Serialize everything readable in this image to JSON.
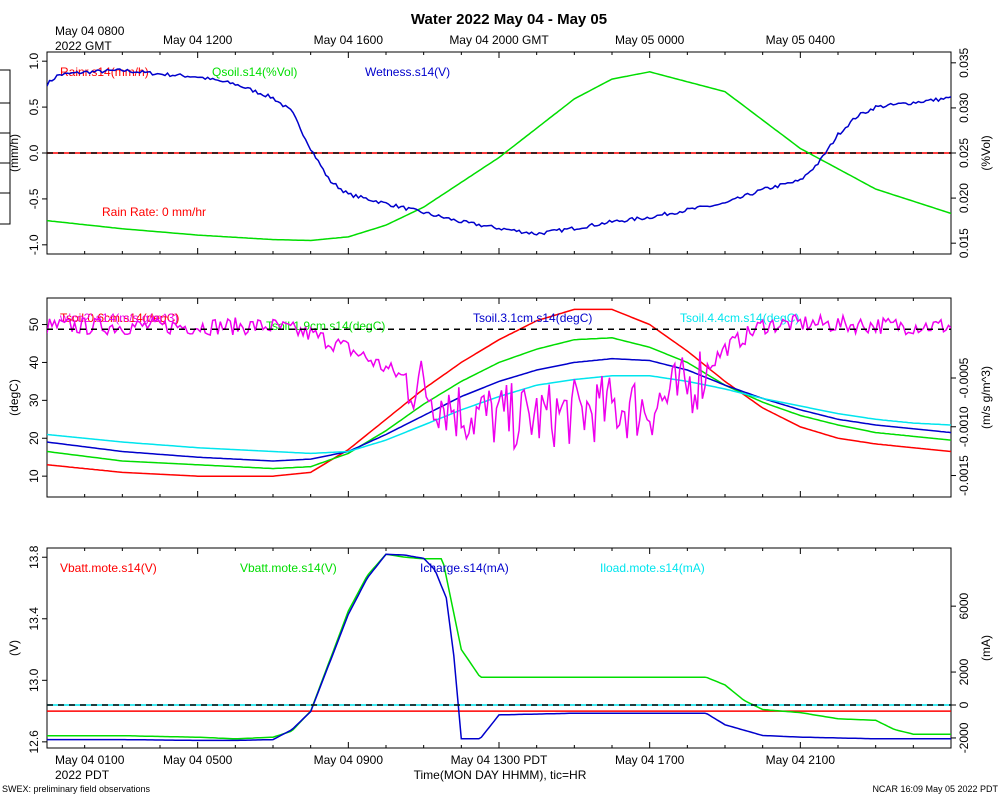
{
  "figure": {
    "title": "Water 2022 May 04 - May 05",
    "top_axis_start": [
      "May 04 0800",
      "2022 GMT"
    ],
    "top_ticks": [
      "May 04 1200",
      "May 04 1600",
      "May 04 2000 GMT",
      "May 05 0000",
      "May 05 0400"
    ],
    "bottom_axis_start": [
      "May 04 0100",
      "2022 PDT"
    ],
    "bottom_ticks": [
      "May 04 0500",
      "May 04 0900",
      "May 04 1300 PDT",
      "May 04 1700",
      "May 04 2100"
    ],
    "xlabel": "Time(MON DAY HHMM), tic=HR",
    "footer_left": "SWEX: preliminary field observations",
    "footer_right": "NCAR 16:09 May 05 2022 PDT",
    "hour_range": [
      0,
      24
    ]
  },
  "colors": {
    "red": "#ff0000",
    "green": "#00dd00",
    "blue": "#0000cc",
    "cyan": "#00e5ee",
    "magenta": "#ee00ee"
  },
  "chart_data": [
    {
      "type": "line",
      "title": "Water panel",
      "ylabel_left": "(mm/h)",
      "ylim_left": [
        -1.1,
        1.1
      ],
      "yticks_left": [
        "1.0",
        "0.5",
        "0.0",
        "-0.5",
        "-1.0"
      ],
      "ylabel_right": "(%Vol)",
      "ylim_right": [
        0.0138,
        0.0362
      ],
      "yticks_right": [
        "0.035",
        "0.030",
        "0.025",
        "0.020",
        "0.015"
      ],
      "annotation": "Rain Rate: 0 mm/hr",
      "series": [
        {
          "name": "Rainr.s14(mm/h)",
          "color": "red",
          "axis": "left",
          "dashed_zero": true,
          "x": [
            0,
            24
          ],
          "values": [
            0,
            0
          ]
        },
        {
          "name": "Qsoil.s14(%Vol)",
          "color": "green",
          "axis": "right",
          "x": [
            0,
            2,
            4,
            6,
            7,
            8,
            9,
            10,
            12,
            14,
            15,
            16,
            18,
            20,
            22,
            24
          ],
          "values": [
            0.0175,
            0.0166,
            0.0159,
            0.0154,
            0.0153,
            0.0157,
            0.017,
            0.019,
            0.0245,
            0.031,
            0.0332,
            0.034,
            0.0318,
            0.0255,
            0.021,
            0.0183
          ]
        },
        {
          "name": "Wetness.s14(V)",
          "color": "blue",
          "axis": "left",
          "noise": 0.02,
          "x": [
            0,
            0.3,
            1,
            2,
            3,
            4,
            5,
            6,
            6.5,
            7,
            7.5,
            8,
            8.5,
            9,
            10,
            11,
            12,
            13,
            14,
            15,
            16,
            17,
            18,
            19,
            20,
            20.5,
            21,
            21.5,
            22,
            23,
            24
          ],
          "values": [
            0.75,
            0.85,
            0.88,
            0.9,
            0.86,
            0.83,
            0.75,
            0.6,
            0.45,
            0.05,
            -0.3,
            -0.45,
            -0.5,
            -0.55,
            -0.65,
            -0.75,
            -0.82,
            -0.88,
            -0.82,
            -0.75,
            -0.7,
            -0.62,
            -0.55,
            -0.4,
            -0.3,
            -0.1,
            0.2,
            0.4,
            0.5,
            0.55,
            0.6
          ]
        }
      ]
    },
    {
      "type": "line",
      "title": "Soil temperature / CO2 flux panel",
      "ylabel_left": "(degC)",
      "ylim_left": [
        4.5,
        57
      ],
      "yticks_left": [
        "50",
        "40",
        "30",
        "20",
        "10"
      ],
      "ylabel_right": "(m/s g/m^3)",
      "ylim_right": [
        -0.00172,
        0.00032
      ],
      "yticks_right": [
        "-0.0005",
        "-0.0010",
        "-0.0015"
      ],
      "series": [
        {
          "name": "Tsoil.0.6cm.s14(degC)",
          "color": "red",
          "axis": "left",
          "x": [
            0,
            2,
            4,
            6,
            7,
            8,
            9,
            10,
            11,
            12,
            13,
            14,
            15,
            16,
            17,
            18,
            19,
            20,
            21,
            22,
            23,
            24
          ],
          "values": [
            13,
            11,
            10,
            10,
            11,
            17,
            25,
            33,
            40,
            46,
            51,
            54,
            54,
            50,
            43,
            35,
            28,
            23,
            20,
            18.5,
            17.5,
            16.5
          ]
        },
        {
          "name": "Tsoil.1.9cm.s14(degC)",
          "color": "green",
          "axis": "left",
          "x": [
            0,
            2,
            4,
            6,
            7,
            8,
            9,
            10,
            11,
            12,
            13,
            14,
            15,
            16,
            17,
            18,
            19,
            20,
            21,
            22,
            23,
            24
          ],
          "values": [
            16.5,
            14,
            13,
            12,
            12.5,
            16,
            22,
            29,
            35,
            40,
            43.5,
            46,
            46.5,
            44,
            40,
            34,
            29.5,
            26,
            23.5,
            21.5,
            20.5,
            19.5
          ]
        },
        {
          "name": "Tsoil.3.1cm.s14(degC)",
          "color": "blue",
          "axis": "left",
          "x": [
            0,
            2,
            4,
            6,
            7,
            8,
            9,
            10,
            11,
            12,
            13,
            14,
            15,
            16,
            17,
            18,
            19,
            20,
            21,
            22,
            23,
            24
          ],
          "values": [
            19,
            16.5,
            15,
            14,
            14.5,
            16.5,
            21,
            26,
            31,
            35,
            38,
            40,
            41,
            40.5,
            38,
            34,
            30.5,
            27.5,
            25,
            23.5,
            22.5,
            21.5
          ]
        },
        {
          "name": "Tsoil.4.4cm.s14(degC)",
          "color": "cyan",
          "axis": "left",
          "x": [
            0,
            2,
            4,
            6,
            7,
            8,
            9,
            10,
            11,
            12,
            13,
            14,
            15,
            16,
            17,
            18,
            19,
            20,
            21,
            22,
            23,
            24
          ],
          "values": [
            21,
            19,
            17.5,
            16.5,
            16,
            16.5,
            19.5,
            23.5,
            27.5,
            31,
            34,
            35.5,
            36.5,
            36.5,
            35,
            33,
            30.5,
            28.5,
            26.5,
            25,
            24,
            23.5
          ]
        },
        {
          "name": "w'co2'.s14(m/s g/m^3)",
          "color": "magenta",
          "axis": "right",
          "dashed_zero": true,
          "noise": 9e-05,
          "noise_high": 0.00035,
          "x": [
            0,
            4,
            6,
            7,
            8,
            9,
            10,
            11,
            12,
            13,
            14,
            15,
            16,
            17,
            18,
            19,
            20,
            22,
            24
          ],
          "values": [
            3e-05,
            3e-05,
            3e-05,
            -5e-05,
            -0.0002,
            -0.0004,
            -0.0006,
            -0.00085,
            -0.0009,
            -0.0009,
            -0.00085,
            -0.0008,
            -0.0008,
            -0.0006,
            -0.0002,
            4e-05,
            6e-05,
            4e-05,
            3e-05
          ]
        }
      ]
    },
    {
      "type": "line",
      "title": "Power panel",
      "ylabel_left": "(V)",
      "ylim_left": [
        12.56,
        13.86
      ],
      "yticks_left": [
        "13.8",
        "13.4",
        "13.0",
        "12.6"
      ],
      "ylabel_right": "(mA)",
      "ylim_right": [
        -2610,
        9530
      ],
      "yticks_right": [
        "6000",
        "2000",
        "0",
        "-2000"
      ],
      "series": [
        {
          "name": "Vbatt.mote.s14(V)",
          "color": "red",
          "axis": "left",
          "x": [
            0,
            24
          ],
          "values": [
            12.8,
            12.8
          ]
        },
        {
          "name": "Vbatt.mote.s14(V)",
          "color": "green",
          "axis": "left",
          "x": [
            0,
            2,
            4,
            5,
            6,
            6.5,
            7,
            8,
            8.5,
            9,
            9.5,
            10,
            10.5,
            11,
            11.5,
            12,
            14,
            16,
            17.5,
            18,
            18.5,
            19,
            20,
            21,
            22,
            22.5,
            23,
            24
          ],
          "values": [
            12.64,
            12.64,
            12.63,
            12.62,
            12.63,
            12.67,
            12.8,
            13.45,
            13.68,
            13.82,
            13.8,
            13.79,
            13.79,
            13.2,
            13.02,
            13.02,
            13.02,
            13.02,
            13.02,
            12.97,
            12.87,
            12.81,
            12.79,
            12.75,
            12.74,
            12.68,
            12.65,
            12.65
          ]
        },
        {
          "name": "Icharge.s14(mA)",
          "color": "blue",
          "axis": "right",
          "x": [
            0,
            2,
            4,
            5,
            6,
            6.5,
            7,
            8,
            8.5,
            9,
            9.5,
            10,
            10.3,
            10.6,
            10.8,
            11,
            11.5,
            12,
            14,
            16,
            17,
            17.5,
            18,
            19,
            20,
            21,
            22,
            23,
            24
          ],
          "values": [
            -2100,
            -2100,
            -2150,
            -2150,
            -2100,
            -1500,
            -400,
            5500,
            7700,
            9150,
            9100,
            8900,
            8200,
            6500,
            3000,
            -2050,
            -2050,
            -600,
            -500,
            -500,
            -500,
            -500,
            -1200,
            -1850,
            -1950,
            -2000,
            -2050,
            -2050,
            -2050
          ]
        },
        {
          "name": "Iload.mote.s14(mA)",
          "color": "cyan",
          "axis": "right",
          "dashed_zero": true,
          "x": [
            0,
            24
          ],
          "values": [
            0,
            0
          ]
        }
      ]
    }
  ]
}
